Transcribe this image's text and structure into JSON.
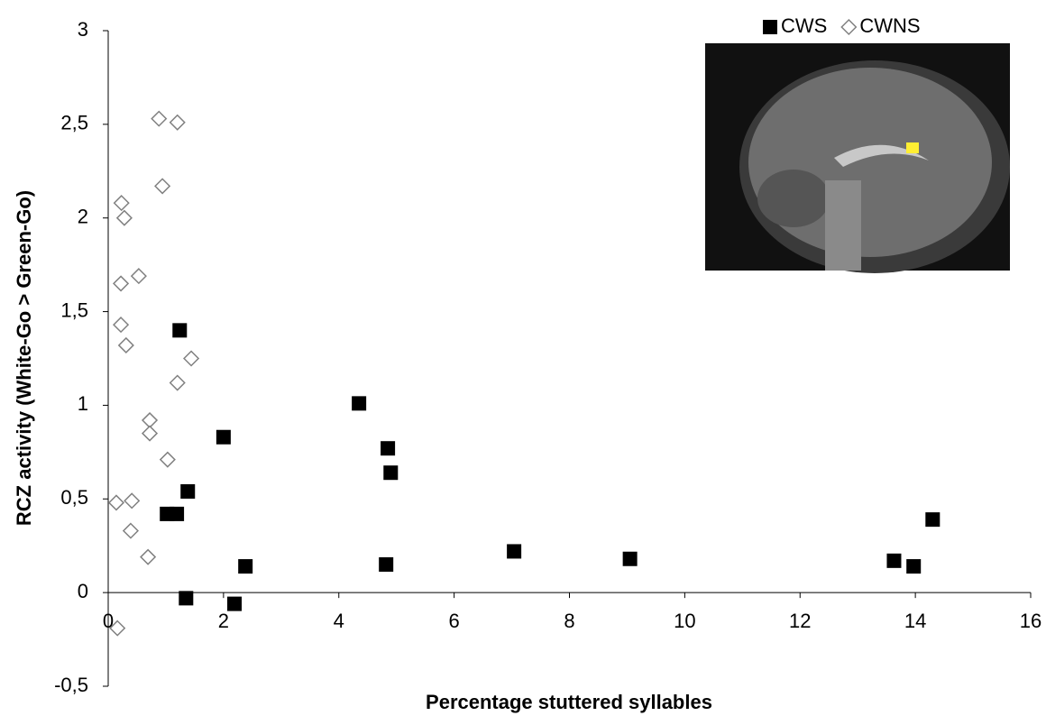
{
  "chart_data": {
    "type": "scatter",
    "xlabel": "Percentage stuttered syllables",
    "ylabel": "RCZ activity (White-Go > Green-Go)",
    "xlim": [
      0,
      16
    ],
    "xticks": [
      0,
      2,
      4,
      6,
      8,
      10,
      12,
      14,
      16
    ],
    "ylim": [
      -0.5,
      3
    ],
    "yticks": [
      {
        "value": -0.5,
        "label": "-0,5"
      },
      0,
      {
        "value": 0.5,
        "label": "0,5"
      },
      1,
      {
        "value": 1.5,
        "label": "1,5"
      },
      2,
      {
        "value": 2.5,
        "label": "2,5"
      },
      3
    ],
    "legend": "upper right",
    "series": [
      {
        "name": "CWS",
        "color": "#000000",
        "marker": "square",
        "x": [
          1.24,
          4.35,
          2.0,
          4.85,
          4.9,
          1.38,
          1.02,
          1.19,
          14.3,
          7.04,
          9.05,
          13.63,
          13.97,
          4.82,
          2.38,
          1.35,
          2.19
        ],
        "values": [
          1.4,
          1.01,
          0.83,
          0.77,
          0.64,
          0.54,
          0.42,
          0.42,
          0.39,
          0.22,
          0.18,
          0.17,
          0.14,
          0.15,
          0.14,
          -0.03,
          -0.06
        ]
      },
      {
        "name": "CWNS",
        "color": "#808080",
        "marker": "diamond",
        "x": [
          0.88,
          1.2,
          0.94,
          0.23,
          0.28,
          0.53,
          0.22,
          0.22,
          0.31,
          1.44,
          1.2,
          0.72,
          0.72,
          1.03,
          0.14,
          0.41,
          0.39,
          0.69,
          0.16
        ],
        "values": [
          2.53,
          2.51,
          2.17,
          2.08,
          2.0,
          1.69,
          1.65,
          1.43,
          1.32,
          1.25,
          1.12,
          0.92,
          0.85,
          0.71,
          0.48,
          0.49,
          0.33,
          0.19,
          -0.19
        ]
      }
    ]
  }
}
